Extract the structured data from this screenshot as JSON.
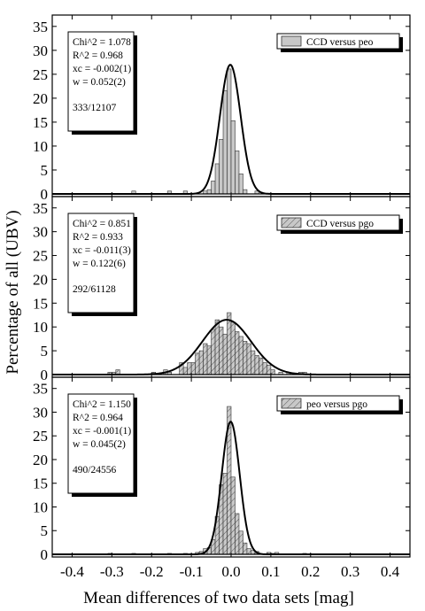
{
  "figure": {
    "ylabel": "Percentage of all (UBV)",
    "xlabel": "Mean differences of two data sets [mag]"
  },
  "chart_data": [
    {
      "type": "bar",
      "legend": "CCD versus peo",
      "legend_pattern": "solid",
      "legend_position": "top-right",
      "stats": [
        "Chi^2 = 1.078",
        "R^2 = 0.968",
        "xc = -0.002(1)",
        "w = 0.052(2)"
      ],
      "count_text": "333/12107",
      "bin_width": 0.01,
      "bins": [
        {
          "x": -0.245,
          "y": 0.6
        },
        {
          "x": -0.155,
          "y": 0.6
        },
        {
          "x": -0.115,
          "y": 0.6
        },
        {
          "x": -0.065,
          "y": 0.6
        },
        {
          "x": -0.055,
          "y": 0.9
        },
        {
          "x": -0.045,
          "y": 2.7
        },
        {
          "x": -0.035,
          "y": 6.3
        },
        {
          "x": -0.025,
          "y": 11.4
        },
        {
          "x": -0.015,
          "y": 21.6
        },
        {
          "x": -0.005,
          "y": 26.1
        },
        {
          "x": 0.005,
          "y": 15.3
        },
        {
          "x": 0.015,
          "y": 9.0
        },
        {
          "x": 0.025,
          "y": 4.2
        },
        {
          "x": 0.035,
          "y": 0.9
        },
        {
          "x": 0.065,
          "y": 0.6
        }
      ],
      "fit": {
        "xc": -0.002,
        "w": 0.052,
        "amp": 27.0
      },
      "xlim": [
        -0.45,
        0.45
      ],
      "ylim": [
        0,
        37
      ],
      "yticks": [
        0,
        5,
        10,
        15,
        20,
        25,
        30,
        35
      ]
    },
    {
      "type": "bar",
      "legend": "CCD versus pgo",
      "legend_pattern": "hatched",
      "legend_position": "top-right",
      "stats": [
        "Chi^2 = 0.851",
        "R^2 = 0.933",
        "xc = -0.011(3)",
        "w = 0.122(6)"
      ],
      "count_text": "292/61128",
      "bin_width": 0.01,
      "bins": [
        {
          "x": -0.305,
          "y": 0.5
        },
        {
          "x": -0.295,
          "y": 0.5
        },
        {
          "x": -0.285,
          "y": 1.0
        },
        {
          "x": -0.195,
          "y": 0.5
        },
        {
          "x": -0.165,
          "y": 1.0
        },
        {
          "x": -0.155,
          "y": 0.5
        },
        {
          "x": -0.125,
          "y": 2.5
        },
        {
          "x": -0.115,
          "y": 1.5
        },
        {
          "x": -0.105,
          "y": 2.5
        },
        {
          "x": -0.095,
          "y": 2.5
        },
        {
          "x": -0.085,
          "y": 4.5
        },
        {
          "x": -0.075,
          "y": 5.0
        },
        {
          "x": -0.065,
          "y": 6.5
        },
        {
          "x": -0.055,
          "y": 6.0
        },
        {
          "x": -0.045,
          "y": 9.5
        },
        {
          "x": -0.035,
          "y": 11.5
        },
        {
          "x": -0.025,
          "y": 10.0
        },
        {
          "x": -0.015,
          "y": 8.5
        },
        {
          "x": -0.005,
          "y": 13.0
        },
        {
          "x": 0.005,
          "y": 11.0
        },
        {
          "x": 0.015,
          "y": 9.0
        },
        {
          "x": 0.025,
          "y": 8.0
        },
        {
          "x": 0.035,
          "y": 7.0
        },
        {
          "x": 0.045,
          "y": 6.5
        },
        {
          "x": 0.055,
          "y": 5.0
        },
        {
          "x": 0.065,
          "y": 4.0
        },
        {
          "x": 0.075,
          "y": 3.5
        },
        {
          "x": 0.085,
          "y": 2.5
        },
        {
          "x": 0.095,
          "y": 2.0
        },
        {
          "x": 0.105,
          "y": 1.0
        },
        {
          "x": 0.125,
          "y": 0.5
        },
        {
          "x": 0.145,
          "y": 0.5
        },
        {
          "x": 0.175,
          "y": 0.5
        },
        {
          "x": 0.185,
          "y": 0.5
        }
      ],
      "fit": {
        "xc": -0.011,
        "w": 0.122,
        "amp": 11.5
      },
      "xlim": [
        -0.45,
        0.45
      ],
      "ylim": [
        0,
        37
      ],
      "yticks": [
        0,
        5,
        10,
        15,
        20,
        25,
        30,
        35
      ]
    },
    {
      "type": "bar",
      "legend": "peo versus pgo",
      "legend_pattern": "hatched",
      "legend_position": "top-right",
      "stats": [
        "Chi^2 = 1.150",
        "R^2 = 0.964",
        "xc = -0.001(1)",
        "w = 0.045(2)"
      ],
      "count_text": "490/24556",
      "bin_width": 0.01,
      "bins": [
        {
          "x": -0.305,
          "y": 0.2
        },
        {
          "x": -0.245,
          "y": 0.2
        },
        {
          "x": -0.155,
          "y": 0.2
        },
        {
          "x": -0.115,
          "y": 0.2
        },
        {
          "x": -0.085,
          "y": 0.4
        },
        {
          "x": -0.075,
          "y": 0.6
        },
        {
          "x": -0.065,
          "y": 1.2
        },
        {
          "x": -0.055,
          "y": 1.4
        },
        {
          "x": -0.045,
          "y": 3.1
        },
        {
          "x": -0.035,
          "y": 8.0
        },
        {
          "x": -0.025,
          "y": 14.7
        },
        {
          "x": -0.015,
          "y": 17.1
        },
        {
          "x": -0.005,
          "y": 31.2
        },
        {
          "x": 0.005,
          "y": 16.3
        },
        {
          "x": 0.015,
          "y": 8.6
        },
        {
          "x": 0.025,
          "y": 4.9
        },
        {
          "x": 0.035,
          "y": 2.4
        },
        {
          "x": 0.045,
          "y": 1.2
        },
        {
          "x": 0.055,
          "y": 0.8
        },
        {
          "x": 0.065,
          "y": 0.6
        },
        {
          "x": 0.095,
          "y": 0.4
        },
        {
          "x": 0.105,
          "y": 0.2
        },
        {
          "x": 0.115,
          "y": 0.4
        },
        {
          "x": 0.185,
          "y": 0.2
        }
      ],
      "fit": {
        "xc": -0.001,
        "w": 0.045,
        "amp": 28.0
      },
      "xlim": [
        -0.45,
        0.45
      ],
      "ylim": [
        0,
        37
      ],
      "yticks": [
        0,
        5,
        10,
        15,
        20,
        25,
        30,
        35
      ],
      "xticks": [
        -0.4,
        -0.3,
        -0.2,
        -0.1,
        0.0,
        0.1,
        0.2,
        0.3,
        0.4
      ],
      "xtick_labels": [
        "-0.4",
        "-0.3",
        "-0.2",
        "-0.1",
        "0.0",
        "0.1",
        "0.2",
        "0.3",
        "0.4"
      ]
    }
  ]
}
